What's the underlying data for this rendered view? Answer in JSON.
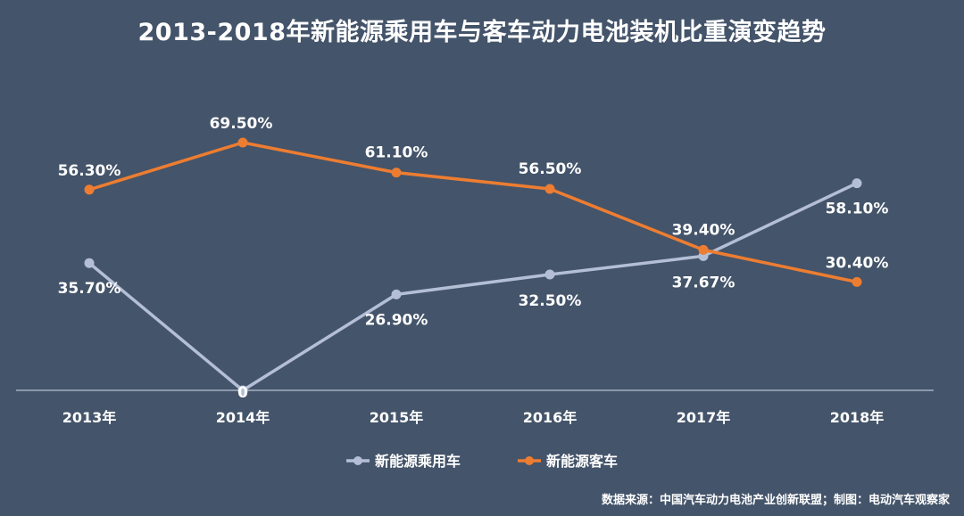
{
  "chart_data": {
    "type": "line",
    "title": "2013-2018年新能源乘用车与客车动力电池装机比重演变趋势",
    "categories": [
      "2013年",
      "2014年",
      "2015年",
      "2016年",
      "2017年",
      "2018年"
    ],
    "series": [
      {
        "name": "新能源乘用车",
        "color": "#b4bfd6",
        "values": [
          35.7,
          0,
          26.9,
          32.5,
          37.67,
          58.1
        ],
        "labels": [
          "35.70%",
          "0",
          "26.90%",
          "32.50%",
          "37.67%",
          "58.10%"
        ]
      },
      {
        "name": "新能源客车",
        "color": "#ed7d31",
        "values": [
          56.3,
          69.5,
          61.1,
          56.5,
          39.4,
          30.4
        ],
        "labels": [
          "56.30%",
          "69.50%",
          "61.10%",
          "56.50%",
          "39.40%",
          "30.40%"
        ]
      }
    ],
    "ylim": [
      0,
      75
    ],
    "grid": false,
    "legend_position": "bottom",
    "axis_color": "#b9c2d3"
  },
  "source": "数据来源：中国汽车动力电池产业创新联盟；制图：电动汽车观察家"
}
